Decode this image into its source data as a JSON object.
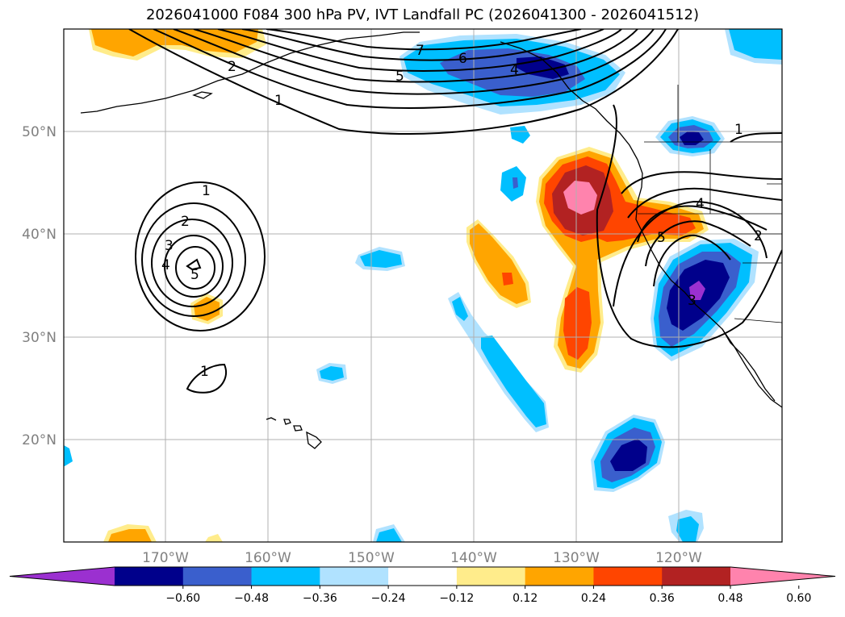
{
  "title": "2026041000 F084 300 hPa PV, IVT Landfall PC (2026041300 - 2026041512)",
  "map": {
    "lat_labels": [
      "50°N",
      "40°N",
      "30°N",
      "20°N"
    ],
    "lon_labels": [
      "170°W",
      "160°W",
      "150°W",
      "140°W",
      "130°W",
      "120°W"
    ],
    "contour_labels": {
      "c1": "1",
      "c2": "2",
      "c3": "3",
      "c4": "4",
      "c5": "5",
      "c6": "6",
      "c7": "7"
    }
  },
  "colorbar": {
    "ticks": [
      "−0.60",
      "−0.48",
      "−0.36",
      "−0.24",
      "−0.12",
      "0.12",
      "0.24",
      "0.36",
      "0.48",
      "0.60"
    ],
    "colors": [
      "#9b30d0",
      "#00008b",
      "#3a5fcd",
      "#00bfff",
      "#b0e2ff",
      "#ffffff",
      "#ffec8b",
      "#ffa500",
      "#ff4500",
      "#b22222",
      "#ff83ad"
    ]
  }
}
